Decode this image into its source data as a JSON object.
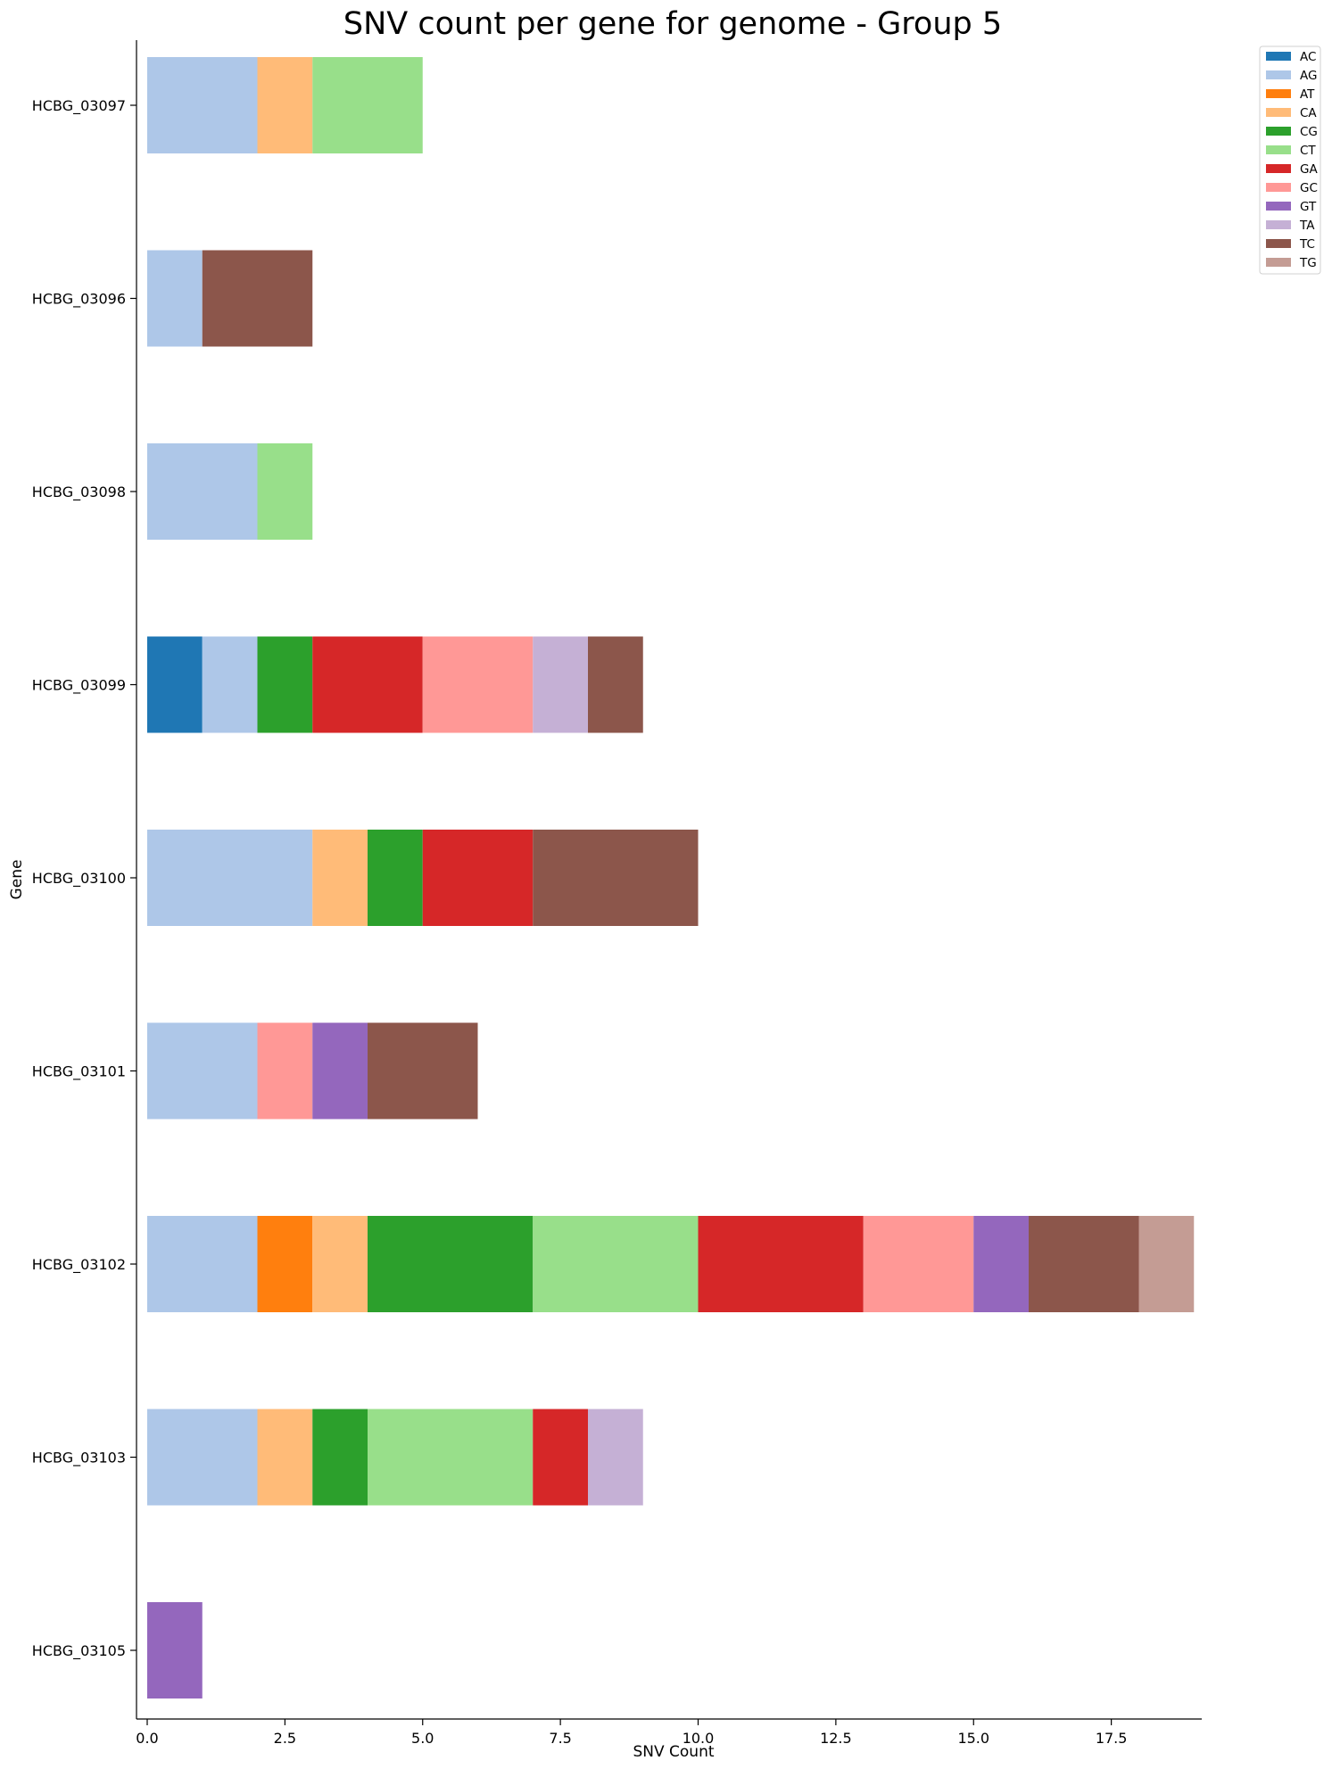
{
  "chart_data": {
    "type": "bar",
    "orientation": "horizontal",
    "stacked": true,
    "title": "SNV count per gene for genome - Group 5",
    "xlabel": "SNV Count",
    "ylabel": "Gene",
    "xlim": [
      0,
      19.2
    ],
    "x_ticks": [
      "0.0",
      "2.5",
      "5.0",
      "7.5",
      "10.0",
      "12.5",
      "15.0",
      "17.5"
    ],
    "x_tick_values": [
      0,
      2.5,
      5,
      7.5,
      10,
      12.5,
      15,
      17.5
    ],
    "grid": false,
    "legend_position": "top-right, outside plot",
    "categories": [
      "HCBG_03097",
      "HCBG_03096",
      "HCBG_03098",
      "HCBG_03099",
      "HCBG_03100",
      "HCBG_03101",
      "HCBG_03102",
      "HCBG_03103",
      "HCBG_03105"
    ],
    "series": [
      {
        "name": "AC",
        "color": "#1f77b4",
        "values": [
          0,
          0,
          0,
          1,
          0,
          0,
          0,
          0,
          0
        ]
      },
      {
        "name": "AG",
        "color": "#aec7e8",
        "values": [
          2,
          1,
          2,
          1,
          3,
          2,
          2,
          2,
          0
        ]
      },
      {
        "name": "AT",
        "color": "#ff7f0e",
        "values": [
          0,
          0,
          0,
          0,
          0,
          0,
          1,
          0,
          0
        ]
      },
      {
        "name": "CA",
        "color": "#ffbb78",
        "values": [
          1,
          0,
          0,
          0,
          1,
          0,
          1,
          1,
          0
        ]
      },
      {
        "name": "CG",
        "color": "#2ca02c",
        "values": [
          0,
          0,
          0,
          1,
          1,
          0,
          3,
          1,
          0
        ]
      },
      {
        "name": "CT",
        "color": "#98df8a",
        "values": [
          2,
          0,
          1,
          0,
          0,
          0,
          3,
          3,
          0
        ]
      },
      {
        "name": "GA",
        "color": "#d62728",
        "values": [
          0,
          0,
          0,
          2,
          2,
          0,
          3,
          1,
          0
        ]
      },
      {
        "name": "GC",
        "color": "#ff9896",
        "values": [
          0,
          0,
          0,
          2,
          0,
          1,
          2,
          0,
          0
        ]
      },
      {
        "name": "GT",
        "color": "#9467bd",
        "values": [
          0,
          0,
          0,
          0,
          0,
          1,
          1,
          0,
          1
        ]
      },
      {
        "name": "TA",
        "color": "#c5b0d5",
        "values": [
          0,
          0,
          0,
          1,
          0,
          0,
          0,
          1,
          0
        ]
      },
      {
        "name": "TC",
        "color": "#8c564b",
        "values": [
          0,
          2,
          0,
          1,
          3,
          2,
          2,
          0,
          0
        ]
      },
      {
        "name": "TG",
        "color": "#c49c94",
        "values": [
          0,
          0,
          0,
          0,
          0,
          0,
          1,
          0,
          0
        ]
      }
    ]
  }
}
